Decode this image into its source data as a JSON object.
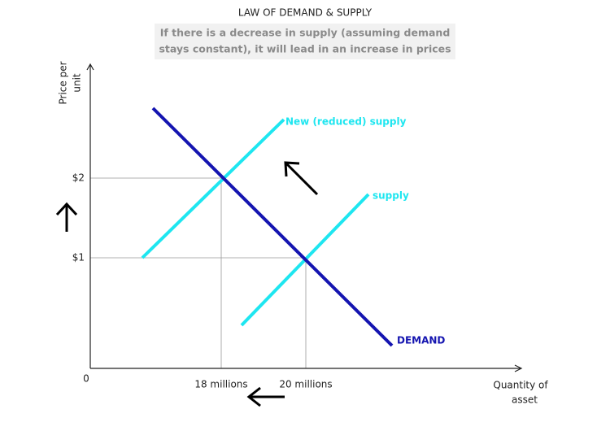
{
  "title": "LAW OF DEMAND & SUPPLY",
  "subtitle": [
    "If there is a decrease in supply (assuming demand",
    "stays constant), it will lead in an increase in prices"
  ],
  "y_axis": {
    "label": [
      "Price per",
      "unit"
    ],
    "ticks": [
      "$2",
      "$1"
    ]
  },
  "origin": "0",
  "x_axis": {
    "label": [
      "Quantity of",
      "asset"
    ],
    "ticks": [
      "18 millions",
      "20 millions"
    ]
  },
  "curves": {
    "new_supply": "New (reduced) supply",
    "supply": "supply",
    "demand": "DEMAND"
  }
}
